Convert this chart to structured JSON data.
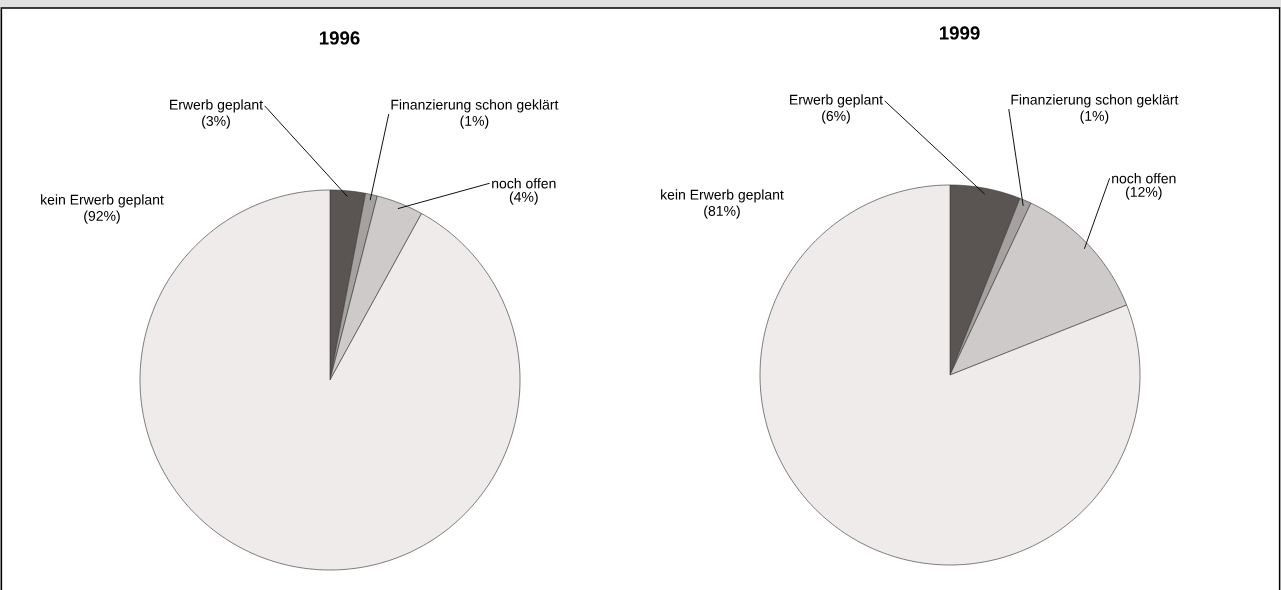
{
  "chart_data": [
    {
      "type": "pie",
      "title": "1996",
      "categories": [
        "Erwerb geplant",
        "Finanzierung schon geklärt",
        "noch offen",
        "kein Erwerb geplant"
      ],
      "values": [
        3,
        1,
        4,
        92
      ],
      "value_labels": [
        "(3%)",
        "(1%)",
        "(4%)",
        "(92%)"
      ],
      "colors": [
        "#5a5552",
        "#a5a1a0",
        "#cfcaca",
        "#efebeb"
      ]
    },
    {
      "type": "pie",
      "title": "1999",
      "categories": [
        "Erwerb geplant",
        "Finanzierung schon geklärt",
        "noch offen",
        "kein Erwerb geplant"
      ],
      "values": [
        6,
        1,
        12,
        81
      ],
      "value_labels": [
        "(6%)",
        "(1%)",
        "(12%)",
        "(81%)"
      ],
      "colors": [
        "#5a5552",
        "#a5a1a0",
        "#cfcaca",
        "#efebeb"
      ]
    }
  ]
}
